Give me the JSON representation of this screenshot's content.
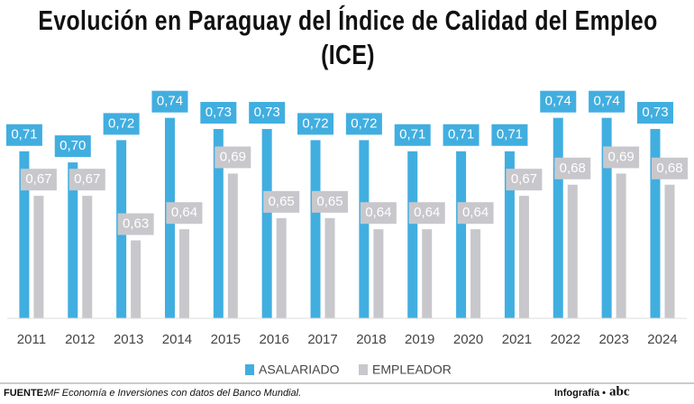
{
  "chart_data": {
    "type": "bar",
    "title": "Evolución en Paraguay del Índice de Calidad del Empleo (ICE)",
    "categories": [
      "2011",
      "2012",
      "2013",
      "2014",
      "2015",
      "2016",
      "2017",
      "2018",
      "2019",
      "2020",
      "2021",
      "2022",
      "2023",
      "2024"
    ],
    "series": [
      {
        "name": "ASALARIADO",
        "color": "#41aee0",
        "values": [
          0.71,
          0.7,
          0.72,
          0.74,
          0.73,
          0.73,
          0.72,
          0.72,
          0.71,
          0.71,
          0.71,
          0.74,
          0.74,
          0.73
        ],
        "value_labels": [
          "0,71",
          "0,70",
          "0,72",
          "0,74",
          "0,73",
          "0,73",
          "0,72",
          "0,72",
          "0,71",
          "0,71",
          "0,71",
          "0,74",
          "0,74",
          "0,73"
        ]
      },
      {
        "name": "EMPLEADOR",
        "color": "#c8c8cc",
        "values": [
          0.67,
          0.67,
          0.63,
          0.64,
          0.69,
          0.65,
          0.65,
          0.64,
          0.64,
          0.64,
          0.67,
          0.68,
          0.69,
          0.68
        ],
        "value_labels": [
          "0,67",
          "0,67",
          "0,63",
          "0,64",
          "0,69",
          "0,65",
          "0,65",
          "0,64",
          "0,64",
          "0,64",
          "0,67",
          "0,68",
          "0,69",
          "0,68"
        ]
      }
    ],
    "ylim": [
      0.56,
      0.76
    ]
  },
  "footer": {
    "source_label": "FUENTE:",
    "source_text": "MF Economía e Inversiones con datos del Banco Mundial.",
    "credit": "Infografía •",
    "logo": "abc"
  }
}
